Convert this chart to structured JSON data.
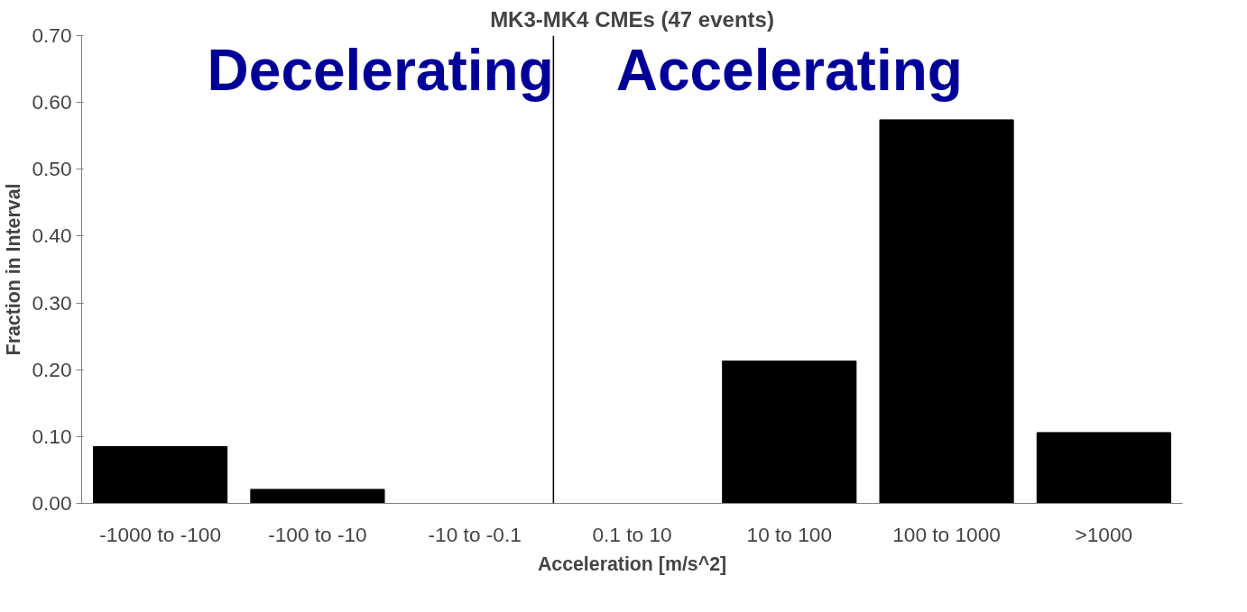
{
  "chart_data": {
    "type": "bar",
    "title": "MK3-MK4 CMEs (47 events)",
    "xlabel": "Acceleration [m/s^2]",
    "ylabel": "Fraction in Interval",
    "categories": [
      "-1000 to -100",
      "-100 to -10",
      "-10 to -0.1",
      "0.1 to 10",
      "10 to 100",
      "100 to 1000",
      ">1000"
    ],
    "values": [
      0.085,
      0.021,
      0,
      0,
      0.213,
      0.574,
      0.106
    ],
    "color": "#000000",
    "ylim": [
      0,
      0.7
    ],
    "yticks": [
      {
        "value": 0,
        "label": "0.00"
      },
      {
        "value": 0.1,
        "label": "0.10"
      },
      {
        "value": 0.2,
        "label": "0.20"
      },
      {
        "value": 0.3,
        "label": "0.30"
      },
      {
        "value": 0.4,
        "label": "0.40"
      },
      {
        "value": 0.5,
        "label": "0.50"
      },
      {
        "value": 0.6,
        "label": "0.60"
      },
      {
        "value": 0.7,
        "label": "0.70"
      }
    ],
    "grid": false,
    "annotations": [
      "Decelerating",
      "Accelerating"
    ]
  }
}
